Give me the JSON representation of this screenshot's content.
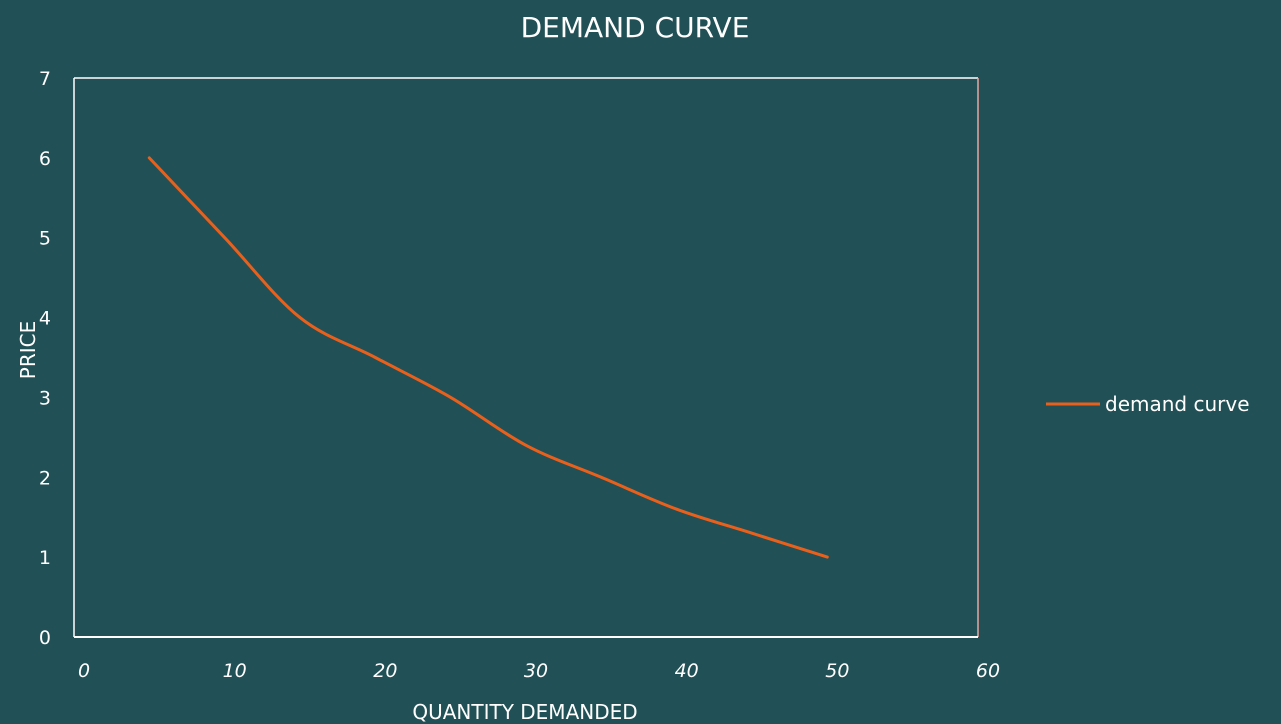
{
  "chart_data": {
    "type": "line",
    "title": "DEMAND CURVE",
    "xlabel": "QUANTITY DEMANDED",
    "ylabel": "PRICE",
    "xlim": [
      0,
      60
    ],
    "ylim": [
      0,
      7
    ],
    "x_ticks": [
      "0",
      "10",
      "20",
      "30",
      "40",
      "50",
      "60"
    ],
    "y_ticks": [
      "0",
      "1",
      "2",
      "3",
      "4",
      "5",
      "6",
      "7"
    ],
    "grid": false,
    "legend_position": "right",
    "series": [
      {
        "name": "demand curve",
        "color": "#e8601c",
        "points": [
          {
            "x": 5,
            "y": 6
          },
          {
            "x": 10,
            "y": 5
          },
          {
            "x": 15,
            "y": 4
          },
          {
            "x": 20,
            "y": 3.5
          },
          {
            "x": 25,
            "y": 3
          },
          {
            "x": 30,
            "y": 2.4
          },
          {
            "x": 35,
            "y": 2
          },
          {
            "x": 40,
            "y": 1.6
          },
          {
            "x": 45,
            "y": 1.3
          },
          {
            "x": 50,
            "y": 1
          }
        ]
      }
    ]
  }
}
